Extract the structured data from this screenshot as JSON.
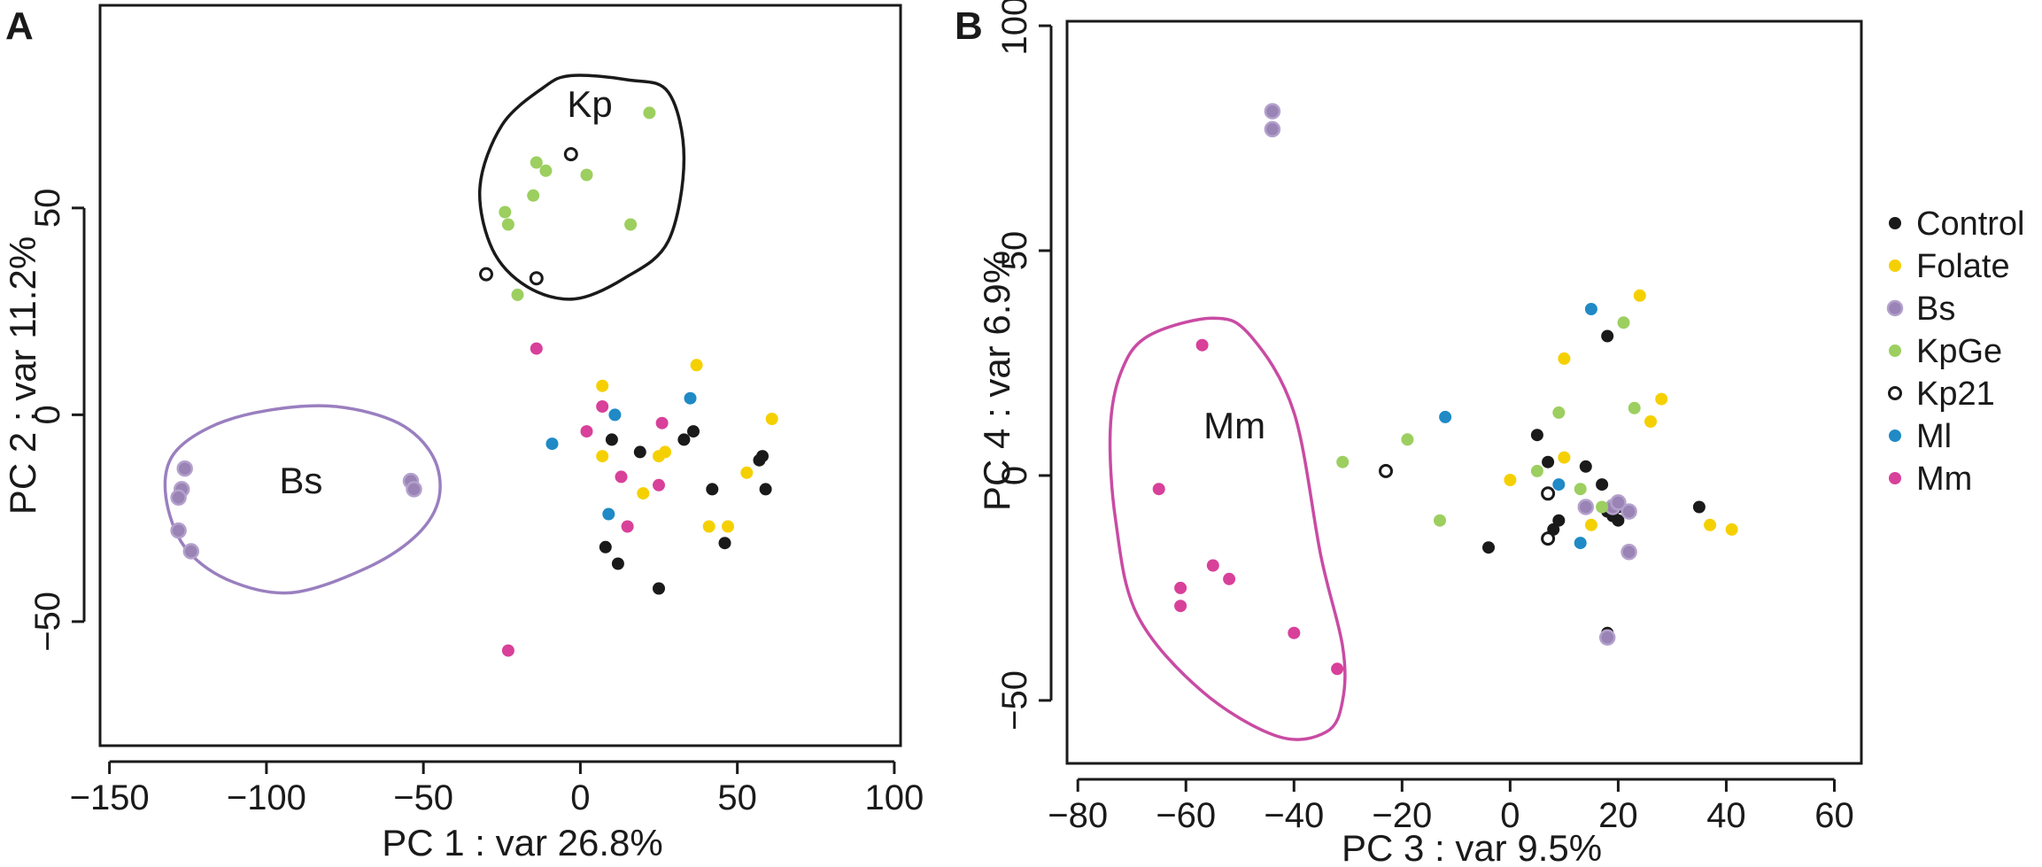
{
  "figure": {
    "panels": [
      "A",
      "B"
    ]
  },
  "legend": {
    "items": [
      {
        "key": "Control",
        "label": "Control",
        "color": "#1a1a1a",
        "hollow": false
      },
      {
        "key": "Folate",
        "label": "Folate",
        "color": "#f5d000",
        "hollow": false
      },
      {
        "key": "Bs",
        "label": "Bs",
        "color": "#9a83b5",
        "hollow": false
      },
      {
        "key": "KpGe",
        "label": "KpGe",
        "color": "#9ccf5f",
        "hollow": false
      },
      {
        "key": "Kp21",
        "label": "Kp21",
        "color": "#1a1a1a",
        "hollow": true
      },
      {
        "key": "Ml",
        "label": "Ml",
        "color": "#1f8ac6",
        "hollow": false
      },
      {
        "key": "Mm",
        "label": "Mm",
        "color": "#d8409a",
        "hollow": false
      }
    ]
  },
  "colors": {
    "hull_Bs": "#9a7fbf",
    "hull_Kp": "#1a1a1a",
    "hull_Mm": "#c94ba3",
    "Bs_edge": "#b3a1cc"
  },
  "chart_data": [
    {
      "type": "scatter",
      "panel": "A",
      "xlabel": "PC 1 : var 26.8%",
      "ylabel": "PC 2 : var 11.2%",
      "xlim": [
        -153,
        102
      ],
      "ylim": [
        -80,
        99
      ],
      "xticks": [
        -150,
        -100,
        -50,
        0,
        50,
        100
      ],
      "yticks": [
        -50,
        0,
        50
      ],
      "xtick_labels": [
        "−150",
        "−100",
        "−50",
        "0",
        "50",
        "100"
      ],
      "ytick_labels": [
        "−50",
        "0",
        "50"
      ],
      "annotations": [
        {
          "text": "Kp",
          "x": 3,
          "y": 75
        },
        {
          "text": "Bs",
          "x": -89,
          "y": -16
        }
      ],
      "hulls": [
        {
          "group": "Kp",
          "points": [
            [
              -28,
              40
            ],
            [
              -32,
              55
            ],
            [
              -25,
              70
            ],
            [
              -12,
              79
            ],
            [
              -3,
              82
            ],
            [
              15,
              81
            ],
            [
              28,
              78
            ],
            [
              33,
              62
            ],
            [
              28,
              42
            ],
            [
              14,
              33
            ],
            [
              -2,
              28
            ],
            [
              -17,
              31
            ]
          ]
        },
        {
          "group": "Bs",
          "points": [
            [
              -132,
              -20
            ],
            [
              -130,
              -10
            ],
            [
              -118,
              -3
            ],
            [
              -100,
              1
            ],
            [
              -78,
              2
            ],
            [
              -58,
              -2
            ],
            [
              -47,
              -10
            ],
            [
              -45,
              -20
            ],
            [
              -52,
              -29
            ],
            [
              -68,
              -37
            ],
            [
              -92,
              -43
            ],
            [
              -112,
              -40
            ],
            [
              -126,
              -32
            ]
          ]
        }
      ],
      "series": [
        {
          "name": "Control",
          "points": [
            [
              10,
              -6
            ],
            [
              19,
              -9
            ],
            [
              33,
              -6
            ],
            [
              36,
              -4
            ],
            [
              42,
              -18
            ],
            [
              58,
              -10
            ],
            [
              57,
              -11
            ],
            [
              59,
              -18
            ],
            [
              8,
              -32
            ],
            [
              12,
              -36
            ],
            [
              25,
              -42
            ],
            [
              46,
              -31
            ]
          ]
        },
        {
          "name": "Folate",
          "points": [
            [
              7,
              7
            ],
            [
              7,
              -10
            ],
            [
              20,
              -19
            ],
            [
              25,
              -10
            ],
            [
              27,
              -9
            ],
            [
              37,
              12
            ],
            [
              41,
              -27
            ],
            [
              47,
              -27
            ],
            [
              53,
              -14
            ],
            [
              61,
              -1
            ]
          ]
        },
        {
          "name": "Bs",
          "points": [
            [
              -126,
              -13
            ],
            [
              -127,
              -18
            ],
            [
              -128,
              -20
            ],
            [
              -128,
              -28
            ],
            [
              -124,
              -33
            ],
            [
              -54,
              -16
            ],
            [
              -53,
              -18
            ]
          ]
        },
        {
          "name": "KpGe",
          "points": [
            [
              -24,
              49
            ],
            [
              -23,
              46
            ],
            [
              -20,
              29
            ],
            [
              -14,
              61
            ],
            [
              -11,
              59
            ],
            [
              -15,
              53
            ],
            [
              2,
              58
            ],
            [
              16,
              46
            ],
            [
              22,
              73
            ]
          ]
        },
        {
          "name": "Kp21",
          "points": [
            [
              -30,
              34
            ],
            [
              -14,
              33
            ],
            [
              -3,
              63
            ]
          ]
        },
        {
          "name": "Ml",
          "points": [
            [
              -9,
              -7
            ],
            [
              11,
              0
            ],
            [
              9,
              -24
            ],
            [
              35,
              4
            ]
          ]
        },
        {
          "name": "Mm",
          "points": [
            [
              -14,
              16
            ],
            [
              7,
              2
            ],
            [
              2,
              -4
            ],
            [
              13,
              -15
            ],
            [
              15,
              -27
            ],
            [
              25,
              -17
            ],
            [
              26,
              -2
            ],
            [
              -23,
              -57
            ]
          ]
        }
      ]
    },
    {
      "type": "scatter",
      "panel": "B",
      "xlabel": "PC 3 : var 9.5%",
      "ylabel": "PC 4 : var 6.9%",
      "xlim": [
        -82,
        65
      ],
      "ylim": [
        -64,
        101
      ],
      "xticks": [
        -80,
        -60,
        -40,
        -20,
        0,
        20,
        40,
        60
      ],
      "yticks": [
        -50,
        0,
        50,
        100
      ],
      "xtick_labels": [
        "−80",
        "−60",
        "−40",
        "−20",
        "0",
        "20",
        "40",
        "60"
      ],
      "ytick_labels": [
        "−50",
        "0",
        "50",
        "100"
      ],
      "annotations": [
        {
          "text": "Mm",
          "x": -51,
          "y": 11
        }
      ],
      "hulls": [
        {
          "group": "Mm",
          "points": [
            [
              -72,
              23
            ],
            [
              -67,
              31
            ],
            [
              -55,
              35
            ],
            [
              -48,
              31
            ],
            [
              -40,
              14
            ],
            [
              -35,
              -18
            ],
            [
              -31,
              -38
            ],
            [
              -31,
              -50
            ],
            [
              -34,
              -57
            ],
            [
              -43,
              -58
            ],
            [
              -57,
              -48
            ],
            [
              -69,
              -31
            ],
            [
              -73,
              -10
            ],
            [
              -74,
              10
            ]
          ]
        }
      ],
      "series": [
        {
          "name": "Control",
          "points": [
            [
              18,
              31
            ],
            [
              5,
              9
            ],
            [
              7,
              3
            ],
            [
              14,
              2
            ],
            [
              17,
              -2
            ],
            [
              20,
              -7
            ],
            [
              18,
              -8
            ],
            [
              19,
              -9
            ],
            [
              20,
              -10
            ],
            [
              9,
              -10
            ],
            [
              8,
              -12
            ],
            [
              -4,
              -16
            ],
            [
              35,
              -7
            ],
            [
              18,
              -35
            ]
          ]
        },
        {
          "name": "Folate",
          "points": [
            [
              24,
              40
            ],
            [
              28,
              17
            ],
            [
              26,
              12
            ],
            [
              10,
              26
            ],
            [
              10,
              4
            ],
            [
              0,
              -1
            ],
            [
              15,
              -11
            ],
            [
              37,
              -11
            ],
            [
              41,
              -12
            ]
          ]
        },
        {
          "name": "Bs",
          "points": [
            [
              -44,
              81
            ],
            [
              -44,
              77
            ],
            [
              14,
              -7
            ],
            [
              19,
              -7
            ],
            [
              20,
              -6
            ],
            [
              22,
              -8
            ],
            [
              22,
              -17
            ],
            [
              18,
              -36
            ]
          ]
        },
        {
          "name": "KpGe",
          "points": [
            [
              21,
              34
            ],
            [
              23,
              15
            ],
            [
              9,
              14
            ],
            [
              -19,
              8
            ],
            [
              -31,
              3
            ],
            [
              5,
              1
            ],
            [
              13,
              -3
            ],
            [
              17,
              -7
            ],
            [
              -13,
              -10
            ]
          ]
        },
        {
          "name": "Kp21",
          "points": [
            [
              -23,
              1
            ],
            [
              7,
              -4
            ],
            [
              7,
              -14
            ]
          ]
        },
        {
          "name": "Ml",
          "points": [
            [
              15,
              37
            ],
            [
              -12,
              13
            ],
            [
              9,
              -2
            ],
            [
              13,
              -15
            ]
          ]
        },
        {
          "name": "Mm",
          "points": [
            [
              -57,
              29
            ],
            [
              -65,
              -3
            ],
            [
              -55,
              -20
            ],
            [
              -52,
              -23
            ],
            [
              -61,
              -25
            ],
            [
              -61,
              -29
            ],
            [
              -40,
              -35
            ],
            [
              -32,
              -43
            ]
          ]
        }
      ]
    }
  ]
}
